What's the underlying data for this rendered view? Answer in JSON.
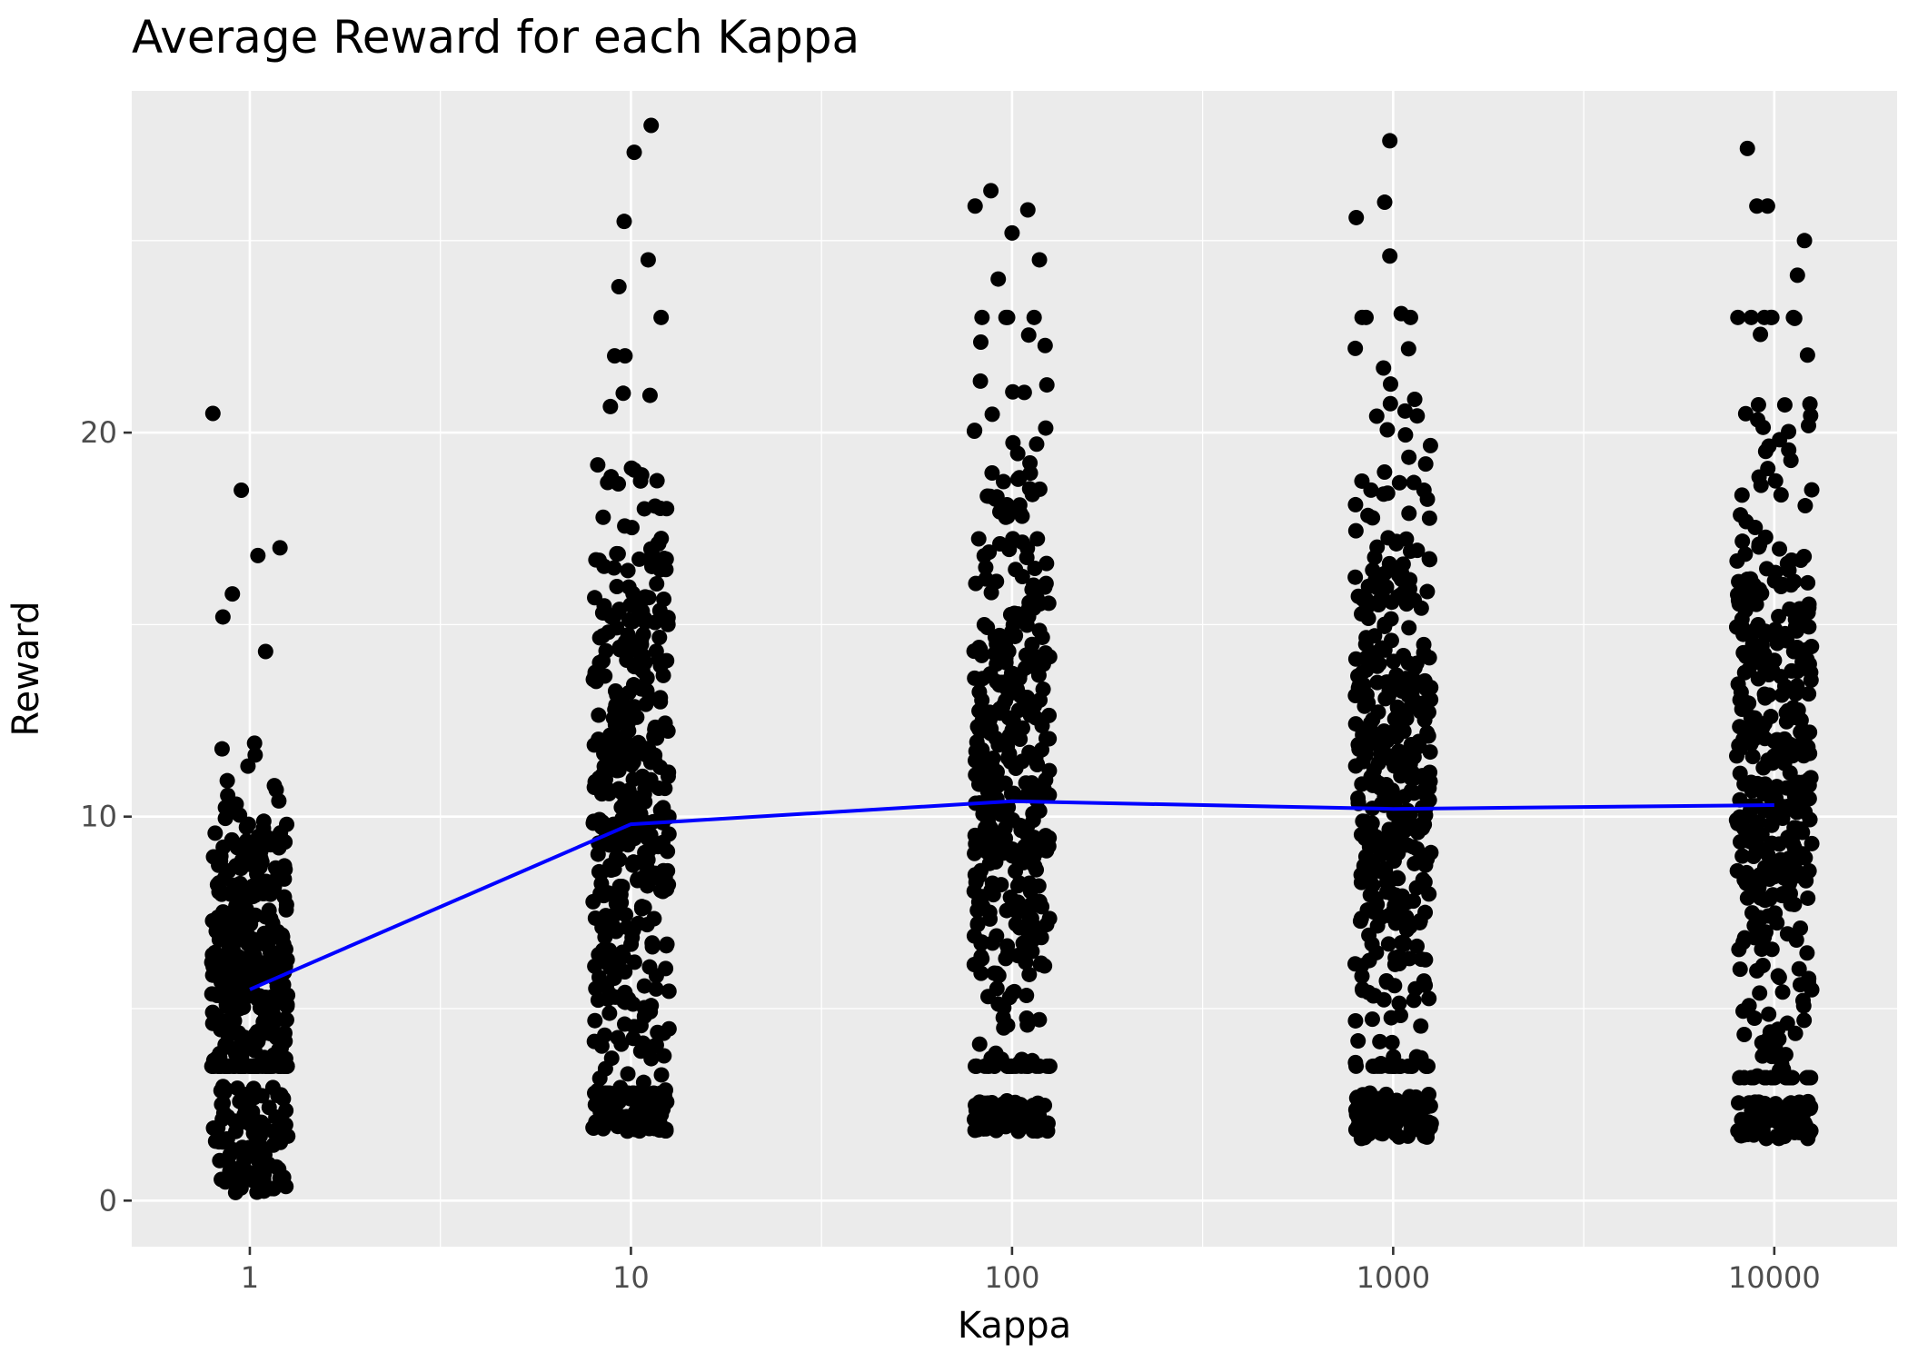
{
  "chart_data": {
    "type": "scatter",
    "title": "Average Reward for each Kappa",
    "xlabel": "Kappa",
    "ylabel": "Reward",
    "x_scale": "log10",
    "xlim": [
      0.49,
      21000
    ],
    "ylim": [
      -1.2,
      28.9
    ],
    "x_ticks": [
      1,
      10,
      100,
      1000,
      10000
    ],
    "x_tick_labels": [
      "1",
      "10",
      "100",
      "1000",
      "10000"
    ],
    "y_ticks": [
      0,
      10,
      20
    ],
    "y_tick_labels": [
      "0",
      "10",
      "20"
    ],
    "grid": true,
    "background": "#ebebeb",
    "grid_color": "#ffffff",
    "point_color": "#000000",
    "line_color": "#0000ff",
    "mean_line": {
      "name": "Average Reward",
      "x": [
        1,
        10,
        100,
        1000,
        10000
      ],
      "y": [
        5.5,
        9.8,
        10.4,
        10.2,
        10.3
      ]
    },
    "point_clouds": [
      {
        "kappa": 1,
        "points_per_group": 500,
        "range": [
          0.2,
          20.5
        ],
        "cluster_low": [
          0.2,
          3.0
        ],
        "bulk": [
          3.5,
          13.0
        ],
        "outliers": [
          [
            0.8,
            20.5
          ],
          [
            0.95,
            18.5
          ],
          [
            1.05,
            16.8
          ],
          [
            1.2,
            17.0
          ],
          [
            0.9,
            15.8
          ],
          [
            0.85,
            15.2
          ],
          [
            1.1,
            14.3
          ]
        ]
      },
      {
        "kappa": 10,
        "points_per_group": 500,
        "range": [
          1.8,
          28.0
        ],
        "cluster_low": [
          1.8,
          2.8
        ],
        "bulk": [
          2.8,
          22.0
        ],
        "outliers": [
          [
            11.3,
            28.0
          ],
          [
            10.2,
            27.3
          ],
          [
            9.6,
            25.5
          ],
          [
            11.1,
            24.5
          ],
          [
            9.3,
            23.8
          ],
          [
            12.0,
            23.0
          ]
        ]
      },
      {
        "kappa": 100,
        "points_per_group": 500,
        "range": [
          1.8,
          26.3
        ],
        "cluster_low": [
          1.8,
          2.6
        ],
        "bulk": [
          3.5,
          23.0
        ],
        "outliers": [
          [
            88.0,
            26.3
          ],
          [
            80.0,
            25.9
          ],
          [
            110.0,
            25.8
          ],
          [
            100.0,
            25.2
          ],
          [
            118.0,
            24.5
          ],
          [
            92.0,
            24.0
          ]
        ]
      },
      {
        "kappa": 1000,
        "points_per_group": 500,
        "range": [
          1.6,
          27.6
        ],
        "cluster_low": [
          1.6,
          2.8
        ],
        "bulk": [
          3.5,
          23.0
        ],
        "outliers": [
          [
            980.0,
            27.6
          ],
          [
            950.0,
            26.0
          ],
          [
            800.0,
            25.6
          ],
          [
            980.0,
            24.6
          ],
          [
            1050.0,
            23.1
          ]
        ]
      },
      {
        "kappa": 10000,
        "points_per_group": 500,
        "range": [
          1.6,
          27.4
        ],
        "cluster_low": [
          1.6,
          2.6
        ],
        "bulk": [
          3.2,
          23.0
        ],
        "outliers": [
          [
            8500.0,
            27.4
          ],
          [
            9000.0,
            25.9
          ],
          [
            9600.0,
            25.9
          ],
          [
            12000.0,
            25.0
          ],
          [
            11500.0,
            24.1
          ],
          [
            8700.0,
            23.0
          ]
        ]
      }
    ]
  }
}
